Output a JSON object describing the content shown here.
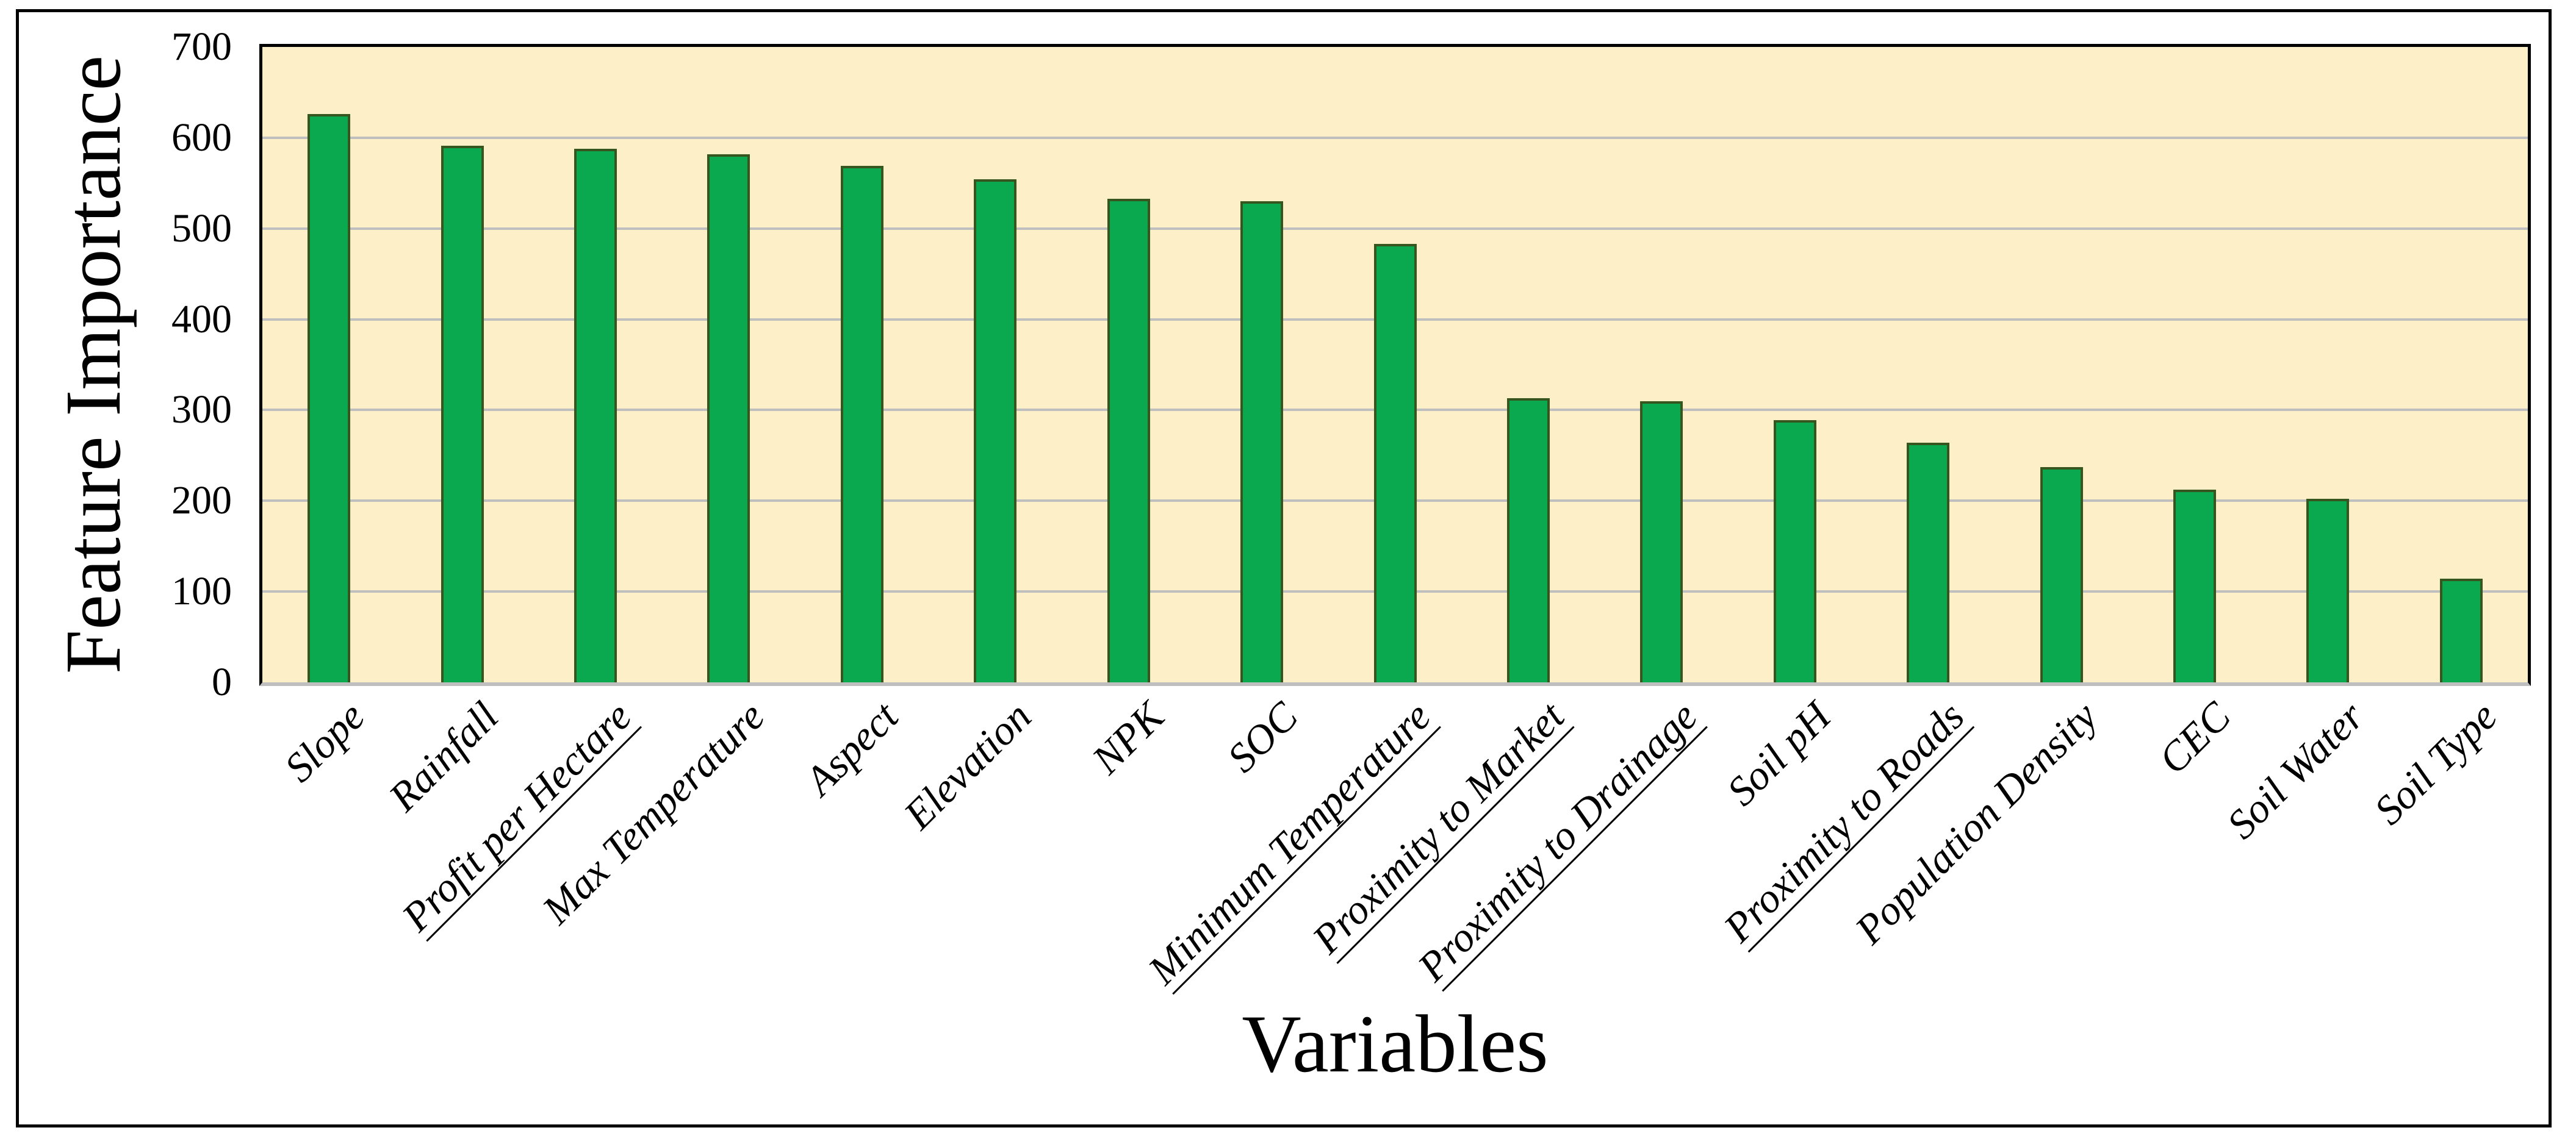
{
  "page": {
    "background": "#ffffff"
  },
  "chart_data": {
    "type": "bar",
    "title": "",
    "xlabel": "Variables",
    "ylabel": "Feature Importance",
    "categories": [
      "Slope",
      "Rainfall",
      "Profit per Hectare",
      "Max Temperature",
      "Aspect",
      "Elevation",
      "NPK",
      "SOC",
      "Minimum Temperature",
      "Proximity to Market",
      "Proximity to Drainage",
      "Soil pH",
      "Proximity to Roads",
      "Population Density",
      "CEC",
      "Soil Water",
      "Soil Type"
    ],
    "values": [
      626,
      591,
      588,
      582,
      569,
      554,
      533,
      530,
      483,
      313,
      310,
      289,
      264,
      237,
      212,
      202,
      114
    ],
    "ylim": [
      0,
      700
    ],
    "yticks": [
      0,
      100,
      200,
      300,
      400,
      500,
      600,
      700
    ],
    "gridlines": [
      100,
      200,
      300,
      400,
      500,
      600
    ],
    "underlined_categories": [
      "Profit per Hectare",
      "Minimum Temperature",
      "Proximity to Market",
      "Proximity to Drainage",
      "Proximity to Roads"
    ],
    "legend_position": "none",
    "grid": true,
    "colors": {
      "bar_fill": "#0aa94f",
      "bar_border": "#37561f",
      "plot_bg": "#fdefc8",
      "gridline": "#bfbfbf",
      "axis_line": "#bfbfbf",
      "frame": "#000000",
      "text": "#000000"
    }
  }
}
